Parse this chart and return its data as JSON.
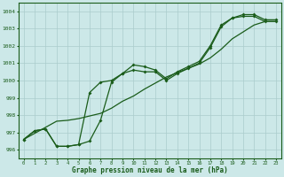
{
  "xlabel": "Graphe pression niveau de la mer (hPa)",
  "background_color": "#cce8e8",
  "grid_color": "#aacccc",
  "line_color": "#1a5c1a",
  "xlim": [
    -0.5,
    23.5
  ],
  "ylim": [
    995.5,
    1004.5
  ],
  "yticks": [
    996,
    997,
    998,
    999,
    1000,
    1001,
    1002,
    1003,
    1004
  ],
  "xticks": [
    0,
    1,
    2,
    3,
    4,
    5,
    6,
    7,
    8,
    9,
    10,
    11,
    12,
    13,
    14,
    15,
    16,
    17,
    18,
    19,
    20,
    21,
    22,
    23
  ],
  "series": {
    "line_main": [
      996.6,
      997.1,
      997.2,
      996.2,
      996.2,
      996.3,
      996.5,
      997.7,
      999.9,
      1000.4,
      1000.6,
      1000.5,
      1000.5,
      1000.0,
      1000.4,
      1000.7,
      1001.0,
      1001.9,
      1003.1,
      1003.6,
      1003.7,
      1003.7,
      1003.4,
      1003.4
    ],
    "line_upper": [
      996.6,
      997.1,
      997.2,
      996.2,
      996.2,
      996.3,
      999.3,
      999.9,
      1000.0,
      1000.4,
      1000.9,
      1000.8,
      1000.6,
      1000.1,
      1000.5,
      1000.8,
      1001.1,
      1002.0,
      1003.2,
      1003.6,
      1003.8,
      1003.8,
      1003.5,
      1003.5
    ],
    "line_trend": [
      996.6,
      996.95,
      997.3,
      997.65,
      997.7,
      997.8,
      997.95,
      998.1,
      998.4,
      998.8,
      999.1,
      999.5,
      999.85,
      1000.2,
      1000.45,
      1000.7,
      1000.95,
      1001.3,
      1001.8,
      1002.4,
      1002.8,
      1003.2,
      1003.4,
      1003.4
    ]
  }
}
